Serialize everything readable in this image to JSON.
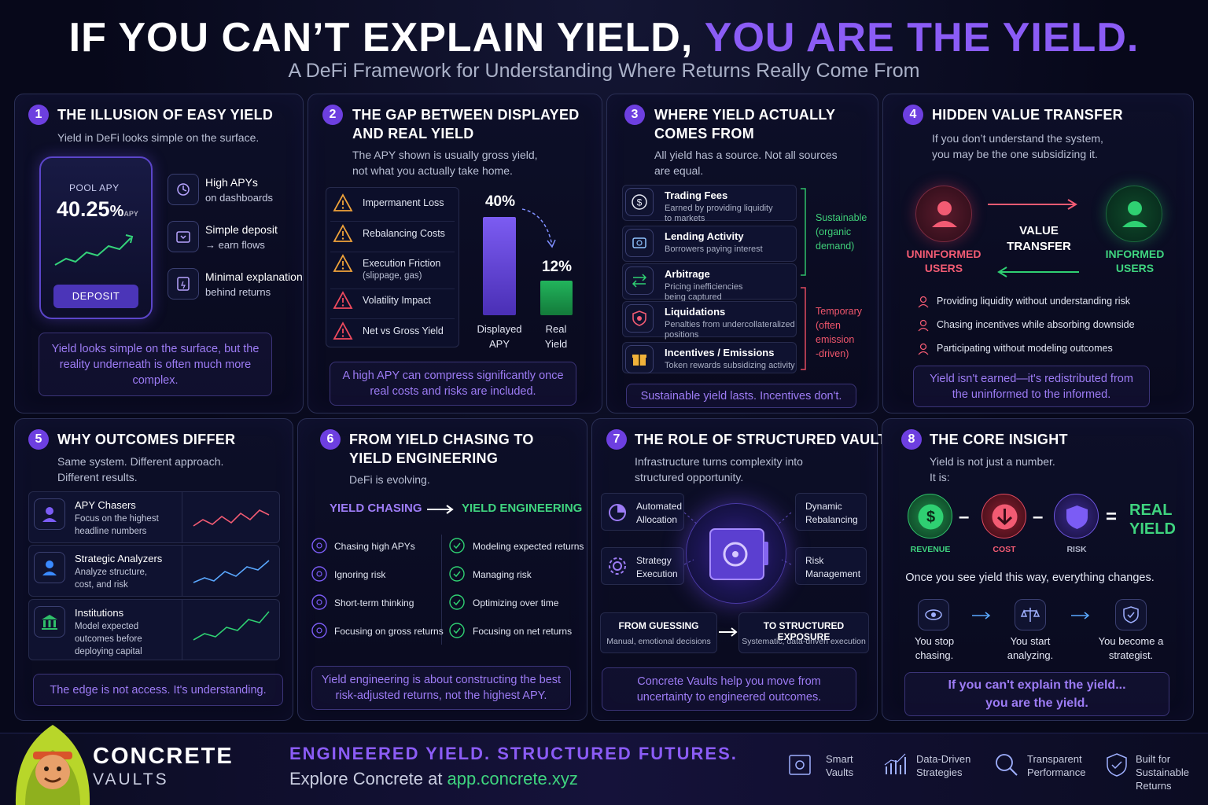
{
  "header": {
    "title_a": "IF YOU CAN’T EXPLAIN YIELD, ",
    "title_b": "YOU ARE THE YIELD.",
    "subtitle": "A DeFi Framework for Understanding Where Returns Really Come From"
  },
  "p1": {
    "num": "1",
    "title": "THE ILLUSION OF EASY YIELD",
    "desc": "Yield in DeFi looks simple on the surface.",
    "phone": {
      "label": "POOL APY",
      "value": "40.25",
      "unit": "%",
      "suffix": "APY",
      "button": "DEPOSIT"
    },
    "items": [
      {
        "a": "High APYs",
        "b": "on dashboards"
      },
      {
        "a": "Simple deposit",
        "b": "→ earn flows"
      },
      {
        "a": "Minimal explanation",
        "b": "behind returns"
      }
    ],
    "callout": "Yield looks simple on the surface, but the reality underneath is often much more complex."
  },
  "p2": {
    "num": "2",
    "title_a": "THE GAP BETWEEN DISPLAYED",
    "title_b": "AND REAL YIELD",
    "desc_a": "The APY shown is usually gross yield,",
    "desc_b": "not what you actually take home.",
    "items": [
      "Impermanent Loss",
      "Rebalancing Costs",
      "Execution Friction",
      "Volatility Impact",
      "Net vs Gross Yield"
    ],
    "item3_sub": "(slippage, gas)",
    "bars": {
      "displayed_value": "40%",
      "real_value": "12%",
      "displayed_label_a": "Displayed",
      "displayed_label_b": "APY",
      "real_label_a": "Real",
      "real_label_b": "Yield"
    },
    "callout": "A high APY can compress significantly once real costs and risks are included."
  },
  "p3": {
    "num": "3",
    "title_a": "WHERE YIELD ACTUALLY",
    "title_b": "COMES FROM",
    "desc_a": "All yield has a source. Not all sources",
    "desc_b": "are equal.",
    "items": [
      {
        "t": "Trading Fees",
        "s1": "Earned by providing liquidity",
        "s2": "to markets"
      },
      {
        "t": "Lending Activity",
        "s1": "Borrowers paying interest",
        "s2": ""
      },
      {
        "t": "Arbitrage",
        "s1": "Pricing inefficiencies",
        "s2": "being captured"
      },
      {
        "t": "Liquidations",
        "s1": "Penalties from undercollateralized",
        "s2": "positions"
      },
      {
        "t": "Incentives / Emissions",
        "s1": "Token rewards subsidizing activity",
        "s2": ""
      }
    ],
    "sustainable": [
      "Sustainable",
      "(organic",
      "demand)"
    ],
    "temporary": [
      "Temporary",
      "(often",
      "emission",
      "-driven)"
    ],
    "callout": "Sustainable yield lasts. Incentives don't."
  },
  "p4": {
    "num": "4",
    "title": "HIDDEN VALUE TRANSFER",
    "desc_a": "If you don’t understand the system,",
    "desc_b": "you may be the one subsidizing it.",
    "left_a": "UNINFORMED",
    "left_b": "USERS",
    "mid_a": "VALUE",
    "mid_b": "TRANSFER",
    "right_a": "INFORMED",
    "right_b": "USERS",
    "items": [
      "Providing liquidity without understanding risk",
      "Chasing incentives while absorbing downside",
      "Participating without modeling outcomes"
    ],
    "callout": "Yield isn't earned—it's redistributed from the uninformed to the informed."
  },
  "p5": {
    "num": "5",
    "title": "WHY OUTCOMES DIFFER",
    "desc_a": "Same system. Different approach.",
    "desc_b": "Different results.",
    "items": [
      {
        "t": "APY Chasers",
        "s1": "Focus on the highest",
        "s2": "headline numbers",
        "s3": ""
      },
      {
        "t": "Strategic Analyzers",
        "s1": "Analyze structure,",
        "s2": "cost, and risk",
        "s3": ""
      },
      {
        "t": "Institutions",
        "s1": "Model expected",
        "s2": "outcomes before",
        "s3": "deploying capital"
      }
    ],
    "callout": "The edge is not access. It's understanding."
  },
  "p6": {
    "num": "6",
    "title_a": "FROM YIELD CHASING TO",
    "title_b": "YIELD ENGINEERING",
    "desc": "DeFi is evolving.",
    "left_head": "YIELD CHASING",
    "right_head": "YIELD ENGINEERING",
    "left": [
      "Chasing high APYs",
      "Ignoring risk",
      "Short-term thinking",
      "Focusing on gross returns"
    ],
    "right": [
      "Modeling expected returns",
      "Managing risk",
      "Optimizing over time",
      "Focusing on net returns"
    ],
    "callout": "Yield engineering is about constructing the best risk-adjusted returns, not the highest APY."
  },
  "p7": {
    "num": "7",
    "title": "THE ROLE OF STRUCTURED VAULTS",
    "desc_a": "Infrastructure turns complexity into",
    "desc_b": "structured opportunity.",
    "tl": [
      "Automated",
      "Allocation"
    ],
    "bl": [
      "Strategy",
      "Execution"
    ],
    "tr": [
      "Dynamic",
      "Rebalancing"
    ],
    "br": [
      "Risk",
      "Management"
    ],
    "from_head": "FROM GUESSING",
    "from_sub": "Manual, emotional decisions",
    "to_head": "TO STRUCTURED EXPOSURE",
    "to_sub": "Systematic, data-driven execution",
    "callout": "Concrete Vaults help you move from uncertainty to engineered outcomes."
  },
  "p8": {
    "num": "8",
    "title": "THE CORE INSIGHT",
    "desc_a": "Yield is not just a number.",
    "desc_b": "It is:",
    "revenue": "REVENUE",
    "cost": "COST",
    "risk": "RISK",
    "minus": "–",
    "equals": "=",
    "real_a": "REAL",
    "real_b": "YIELD",
    "change": "Once you see yield this way, everything changes.",
    "steps": [
      {
        "a": "You stop",
        "b": "chasing."
      },
      {
        "a": "You start",
        "b": "analyzing."
      },
      {
        "a": "You become a",
        "b": "strategist."
      }
    ],
    "callout_a": "If you can't explain the yield...",
    "callout_b": "you are the yield."
  },
  "footer": {
    "brand_a": "CONCRETE",
    "brand_b": "VAULTS",
    "tagline": "ENGINEERED YIELD. STRUCTURED FUTURES.",
    "explore": "Explore Concrete at ",
    "url": "app.concrete.xyz",
    "features": [
      {
        "a": "Smart",
        "b": "Vaults",
        "c": ""
      },
      {
        "a": "Data-Driven",
        "b": "Strategies",
        "c": ""
      },
      {
        "a": "Transparent",
        "b": "Performance",
        "c": ""
      },
      {
        "a": "Built for",
        "b": "Sustainable",
        "c": "Returns"
      }
    ]
  }
}
